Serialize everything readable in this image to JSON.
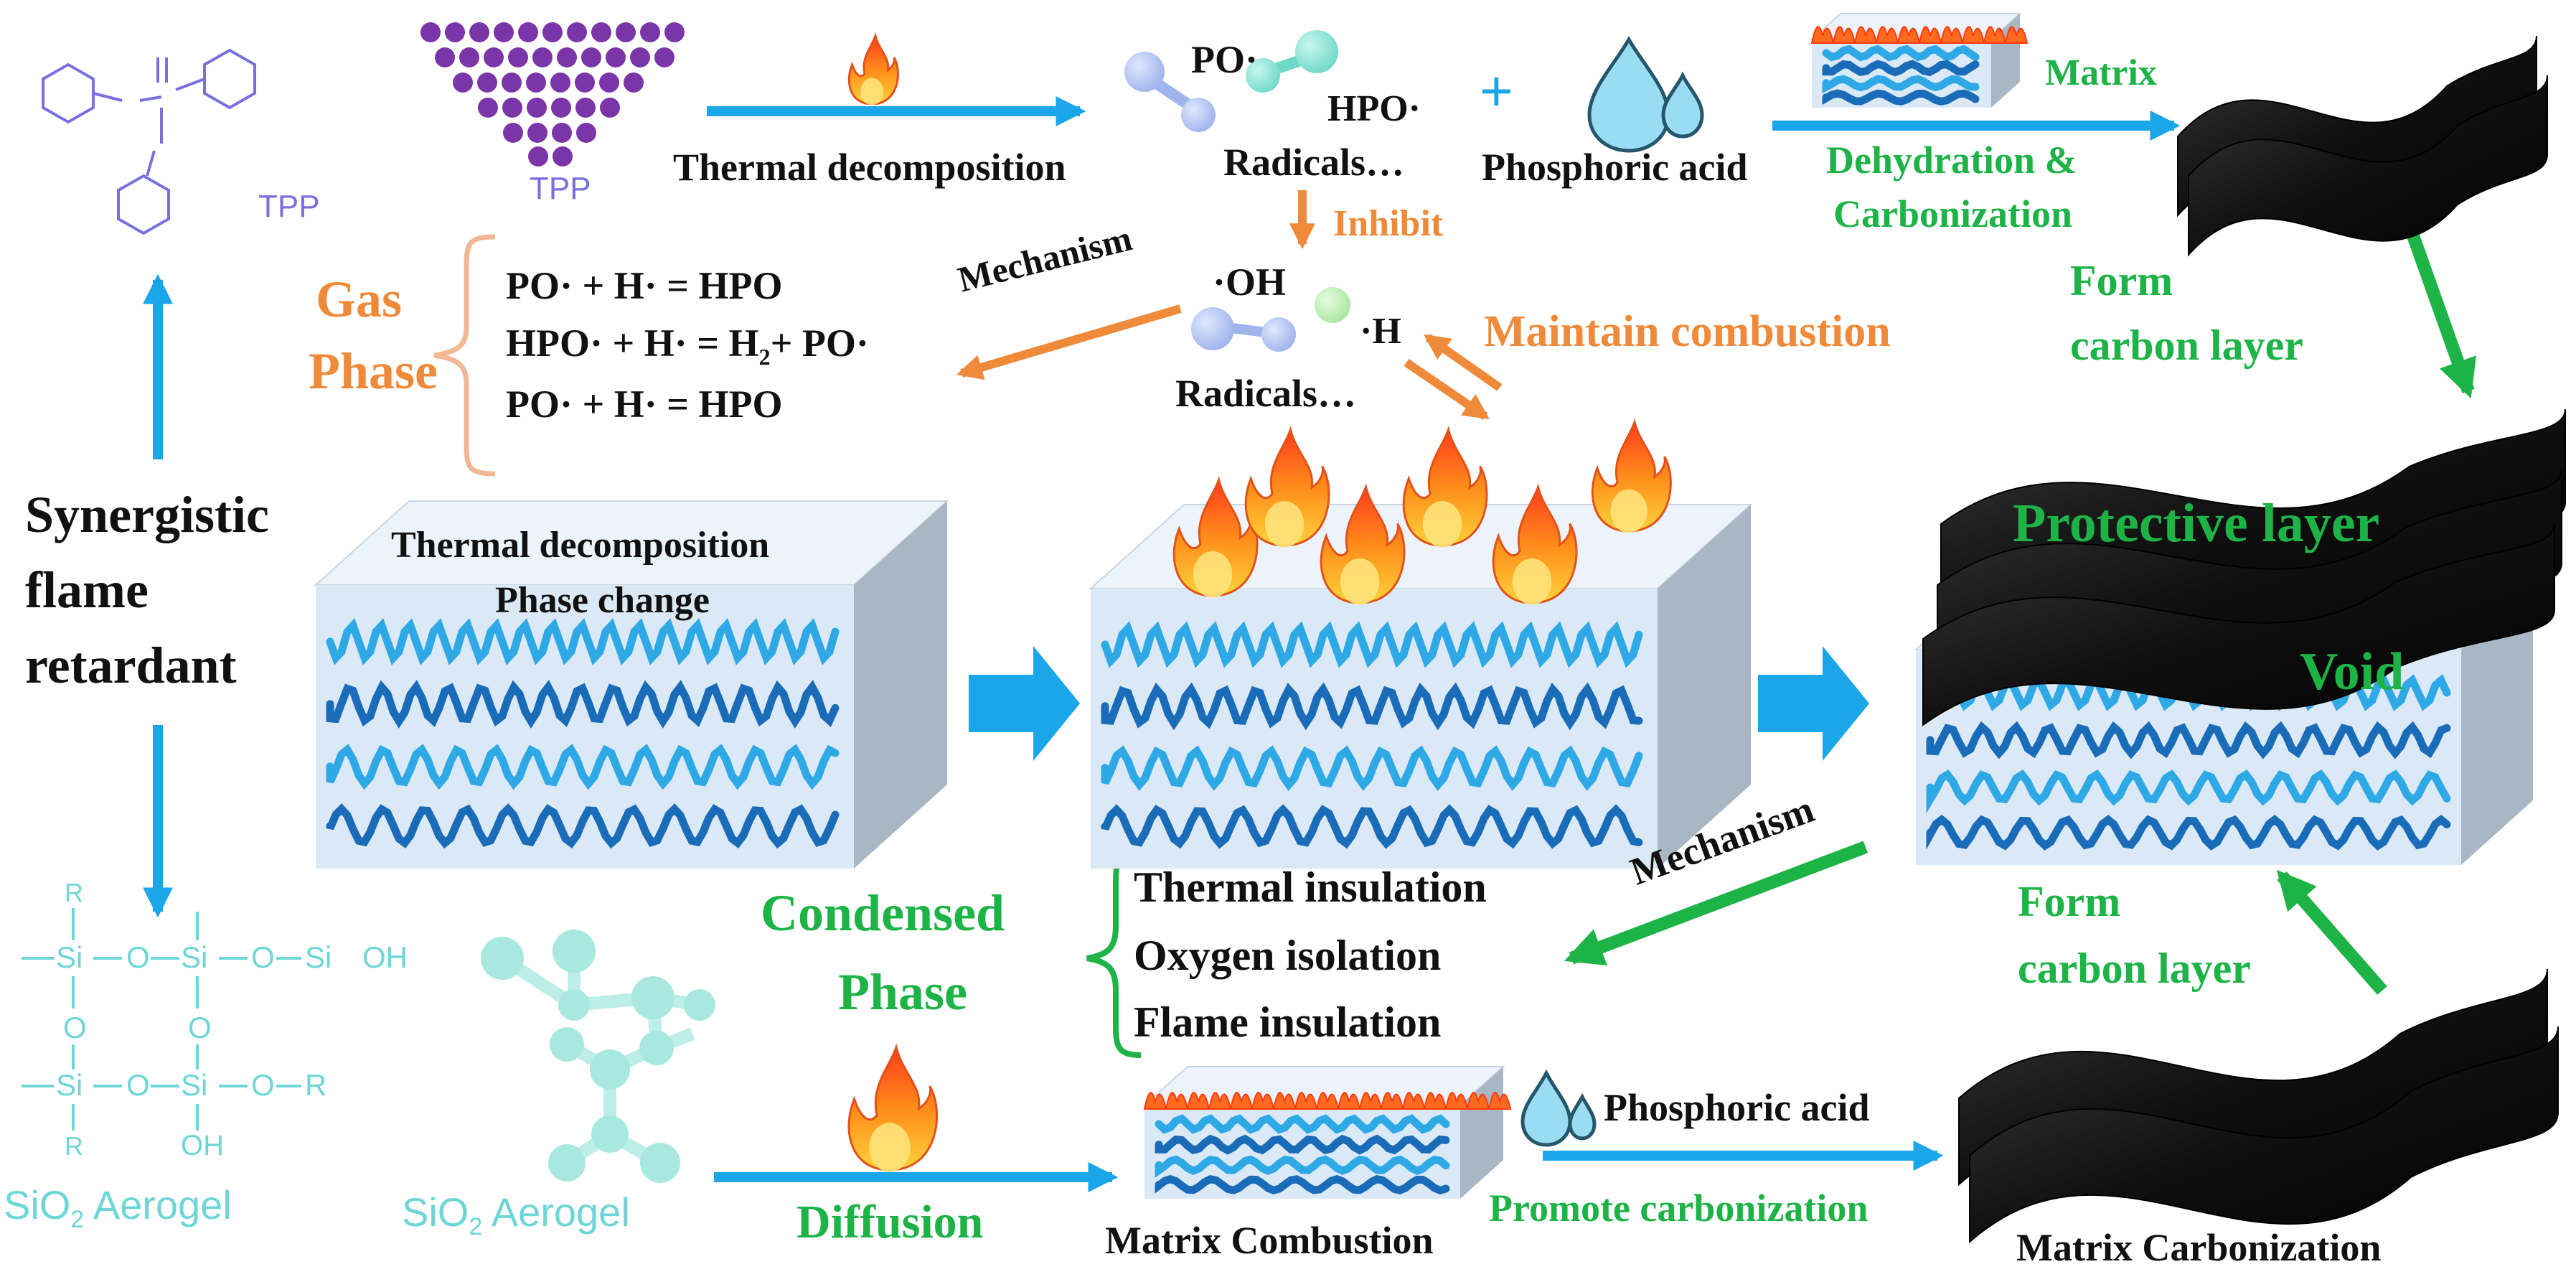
{
  "colors": {
    "arrow_blue": "#1aa6e8",
    "green": "#1db347",
    "orange": "#ef8a3a",
    "tpp_purple": "#7b6fe0",
    "aerogel_cyan": "#6fd6d6",
    "dot_purple": "#7a35a8",
    "fiber_dark": "#1a6cb8",
    "fiber_light": "#2fa8e6",
    "box_front": "#dbe9f6",
    "box_side": "#a9b6c3",
    "box_top": "#ecf3fa",
    "char_black": "#141414"
  },
  "icons": [
    "flame-icon",
    "water-drop-icon",
    "radical-molecule-icon",
    "carbon-sheet-icon",
    "polymer-block-icon"
  ],
  "top": {
    "tpp_structure_label": "TPP",
    "tpp_particles_label": "TPP",
    "thermal_decomposition": "Thermal decomposition",
    "po_radical": "PO·",
    "hpo_radical": "HPO·",
    "radicals_1": "Radicals…",
    "plus": "+",
    "phosphoric_acid": "Phosphoric acid",
    "matrix": "Matrix",
    "dehydration_line1": "Dehydration &",
    "dehydration_line2": "Carbonization",
    "inhibit": "Inhibit",
    "form_carbon_line1": "Form",
    "form_carbon_line2": "carbon layer"
  },
  "gas_phase": {
    "title_line1": "Gas",
    "title_line2": "Phase",
    "eq1": "PO· + H· = HPO",
    "eq2_part1": "HPO· + H· = H",
    "eq2_sub": "2",
    "eq2_part2": "+ PO·",
    "eq3": "PO· + H· = HPO",
    "mechanism": "Mechanism",
    "oh_radical": "·OH",
    "h_radical": "·H",
    "radicals_2": "Radicals…",
    "maintain_combustion": "Maintain combustion"
  },
  "middle": {
    "synergistic_line1": "Synergistic",
    "synergistic_line2": "flame",
    "synergistic_line3": "retardant",
    "block1_line1": "Thermal decomposition",
    "block1_line2": "Phase change",
    "protective_layer": "Protective layer",
    "void": "Void"
  },
  "condensed_phase": {
    "title_line1": "Condensed",
    "title_line2": "Phase",
    "items": [
      "Thermal insulation",
      "Oxygen isolation",
      "Flame insulation"
    ],
    "mechanism": "Mechanism",
    "form_carbon_line1": "Form",
    "form_carbon_line2": "carbon layer"
  },
  "bottom": {
    "siloxane_R1": "R",
    "siloxane_row1": "Si",
    "siloxane_O": "O",
    "siloxane_OH": "OH",
    "siloxane_R": "R",
    "aerogel_label_1_main": "SiO",
    "aerogel_label_1_sub": "2",
    "aerogel_label_1_end": " Aerogel",
    "aerogel_label_2_main": "SiO",
    "aerogel_label_2_sub": "2",
    "aerogel_label_2_end": " Aerogel",
    "diffusion": "Diffusion",
    "matrix_combustion": "Matrix Combustion",
    "phosphoric_acid": "Phosphoric acid",
    "promote_carbonization": "Promote carbonization",
    "matrix_carbonization": "Matrix Carbonization"
  }
}
